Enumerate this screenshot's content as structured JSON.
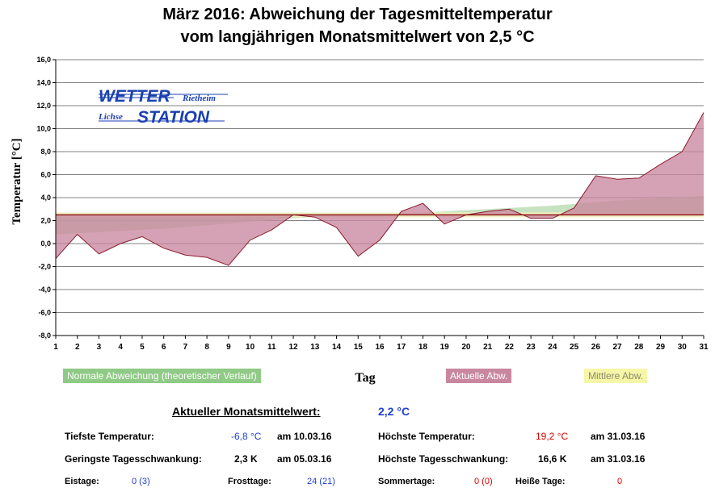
{
  "colors": {
    "actual_fill": "#c9879f",
    "actual_line": "#8b1a2e",
    "normal_fill": "#b9dbb0",
    "mean_fill": "#f2f2c4",
    "mean_line": "#8b1a1a",
    "grid": "#808080",
    "logo_blue": "#1a3fb0",
    "blue": "#1f3fd0",
    "red": "#e00000"
  },
  "logo": {
    "line1_big": "WETTER",
    "line1_small": "Rietheim",
    "line2_small": "Lichse",
    "line2_big": "STATION"
  },
  "chart_data": {
    "type": "area",
    "title_line1": "März 2016: Abweichung der Tagesmitteltemperatur",
    "title_line2": "vom langjährigen Monatsmittelwert von 2,5 °C",
    "xlabel": "Tag",
    "ylabel": "Temperatur [°C]",
    "ylim": [
      -8,
      16
    ],
    "yticks": [
      "-8,0",
      "-6,0",
      "-4,0",
      "-2,0",
      "0,0",
      "2,0",
      "4,0",
      "6,0",
      "8,0",
      "10,0",
      "12,0",
      "14,0",
      "16,0"
    ],
    "x": [
      1,
      2,
      3,
      4,
      5,
      6,
      7,
      8,
      9,
      10,
      11,
      12,
      13,
      14,
      15,
      16,
      17,
      18,
      19,
      20,
      21,
      22,
      23,
      24,
      25,
      26,
      27,
      28,
      29,
      30,
      31
    ],
    "baseline": 2.5,
    "series": [
      {
        "name": "Aktuelle Abw.",
        "values": [
          -1.3,
          0.8,
          -0.9,
          0.0,
          0.6,
          -0.4,
          -1.0,
          -1.2,
          -1.9,
          0.3,
          1.2,
          2.5,
          2.3,
          1.4,
          -1.1,
          0.3,
          2.8,
          3.5,
          1.7,
          2.5,
          2.8,
          3.0,
          2.2,
          2.2,
          3.1,
          5.9,
          5.6,
          5.7,
          6.9,
          8.0,
          11.4
        ]
      },
      {
        "name": "Normale Abweichung (theoretischer Verlauf)",
        "values": [
          0.8,
          0.9,
          1.0,
          1.1,
          1.2,
          1.3,
          1.45,
          1.6,
          1.75,
          1.9,
          2.05,
          2.2,
          2.3,
          2.38,
          2.45,
          2.5,
          2.6,
          2.7,
          2.8,
          2.9,
          3.0,
          3.1,
          3.2,
          3.3,
          3.45,
          3.6,
          3.75,
          3.85,
          3.95,
          4.05,
          4.15
        ]
      },
      {
        "name": "Mittlere Abw.",
        "values": [
          2.5,
          2.5,
          2.5,
          2.5,
          2.5,
          2.5,
          2.5,
          2.5,
          2.5,
          2.5,
          2.5,
          2.5,
          2.5,
          2.5,
          2.5,
          2.5,
          2.5,
          2.5,
          2.5,
          2.5,
          2.5,
          2.5,
          2.5,
          2.5,
          2.5,
          2.5,
          2.5,
          2.5,
          2.5,
          2.5,
          2.5
        ]
      }
    ],
    "legend": {
      "normal": "Normale Abweichung (theoretischer Verlauf)",
      "actual": "Aktuelle Abw.",
      "mean": "Mittlere Abw."
    }
  },
  "stats": {
    "monthly_label": "Aktueller Monatsmittelwert:",
    "monthly_value": "2,2 °C",
    "min_temp_label": "Tiefste Temperatur:",
    "min_temp_value": "-6,8 °C",
    "min_temp_date": "am 10.03.16",
    "max_temp_label": "Höchste Temperatur:",
    "max_temp_value": "19,2 °C",
    "max_temp_date": "am 31.03.16",
    "min_swing_label": "Geringste Tagesschwankung:",
    "min_swing_value": "2,3 K",
    "min_swing_date": "am 05.03.16",
    "max_swing_label": "Höchste Tagesschwankung:",
    "max_swing_value": "16,6 K",
    "max_swing_date": "am 31.03.16",
    "ice_days_label": "Eistage:",
    "ice_days_value": "0 (3)",
    "frost_days_label": "Frosttage:",
    "frost_days_value": "24 (21)",
    "summer_days_label": "Sommertage:",
    "summer_days_value": "0 (0)",
    "hot_days_label": "Heiße Tage:",
    "hot_days_value": "0"
  }
}
